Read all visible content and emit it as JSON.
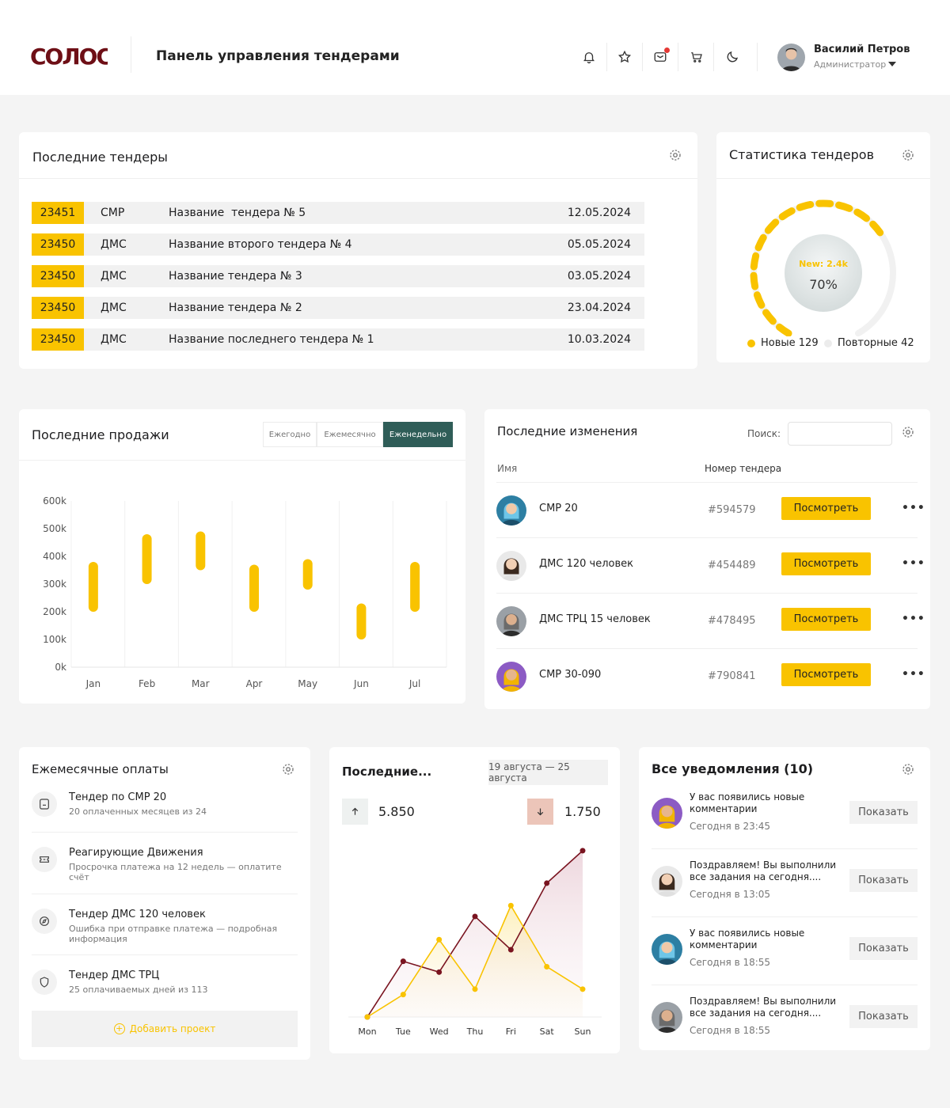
{
  "header": {
    "logo_text": "COЛOC",
    "title": "Панель управления тендерами",
    "user": {
      "name": "Василий Петров",
      "role": "Администратор"
    }
  },
  "tenders": {
    "title": "Последние тендеры",
    "rows": [
      {
        "id": "23451",
        "type": "СМР",
        "name": "Название  тендера № 5",
        "date": "12.05.2024"
      },
      {
        "id": "23450",
        "type": "ДМС",
        "name": "Название второго тендера № 4",
        "date": "05.05.2024"
      },
      {
        "id": "23450",
        "type": "ДМС",
        "name": "Название тендера № 3",
        "date": "03.05.2024"
      },
      {
        "id": "23450",
        "type": "ДМС",
        "name": "Название тендера № 2",
        "date": "23.04.2024"
      },
      {
        "id": "23450",
        "type": "ДМС",
        "name": "Название последнего тендера № 1",
        "date": "10.03.2024"
      }
    ]
  },
  "stats": {
    "title": "Статистика тендеров",
    "center_label": "New: 2.4k",
    "center_percent": "70%",
    "progress": 0.7,
    "legend": [
      {
        "label": "Новые 129",
        "color": "#f9c300"
      },
      {
        "label": "Повторные 42",
        "color": "#ececec"
      }
    ]
  },
  "sales": {
    "title": "Последние продажи",
    "tabs": [
      "Ежегодно",
      "Ежемесячно",
      "Еженедельно"
    ],
    "active_tab": 2,
    "chart_data": {
      "type": "bar",
      "categories": [
        "Jan",
        "Feb",
        "Mar",
        "Apr",
        "May",
        "Jun",
        "Jul"
      ],
      "ranges": [
        [
          200000,
          380000
        ],
        [
          300000,
          480000
        ],
        [
          350000,
          490000
        ],
        [
          200000,
          370000
        ],
        [
          280000,
          390000
        ],
        [
          100000,
          230000
        ],
        [
          200000,
          380000
        ]
      ],
      "ylim": [
        0,
        600000
      ],
      "yticks": [
        "0k",
        "100k",
        "200k",
        "300k",
        "400k",
        "500k",
        "600k"
      ],
      "color": "#f9c300"
    }
  },
  "changes": {
    "title": "Последние изменения",
    "search_label": "Поиск:",
    "columns": [
      "Имя",
      "Номер тендера"
    ],
    "button_label": "Посмотреть",
    "rows": [
      {
        "name": "СМР 20",
        "number": "#594579"
      },
      {
        "name": "ДМС 120 человек",
        "number": "#454489"
      },
      {
        "name": "ДМС ТРЦ 15 человек",
        "number": "#478495"
      },
      {
        "name": "СМР 30-090",
        "number": "#790841"
      }
    ]
  },
  "payments": {
    "title": "Ежемесячные оплаты",
    "items": [
      {
        "title": "Тендер по СМР 20",
        "sub": "20 оплаченных месяцев из 24",
        "icon": "receipt-icon"
      },
      {
        "title": "Реагирующие Движения",
        "sub": "Просрочка платежа на 12 недель — оплатите счёт",
        "icon": "ticket-icon"
      },
      {
        "title": "Тендер ДМС 120 человек",
        "sub": "Ошибка при отправке платежа — подробная информация",
        "icon": "compass-icon"
      },
      {
        "title": "Тендер ДМС ТРЦ",
        "sub": "25 оплачиваемых дней из 113",
        "icon": "shield-icon"
      }
    ],
    "add_label": "Добавить проект"
  },
  "latest": {
    "title": "Последние...",
    "range": "19 августа — 25 августа",
    "up_value": "5.850",
    "down_value": "1.750",
    "chart_data": {
      "type": "line",
      "x": [
        "Mon",
        "Tue",
        "Wed",
        "Thu",
        "Fri",
        "Sat",
        "Sun"
      ],
      "series": [
        {
          "color": "#7a1420",
          "values": [
            0,
            72,
            58,
            130,
            87,
            173,
            215
          ]
        },
        {
          "color": "#f9c300",
          "values": [
            0,
            29,
            100,
            36,
            144,
            65,
            36
          ]
        }
      ],
      "ylim": [
        0,
        220
      ]
    }
  },
  "notifications": {
    "title": "Все уведомления (10)",
    "button_label": "Показать",
    "items": [
      {
        "text": "У вас появились новые комментарии",
        "time": "Сегодня в 23:45"
      },
      {
        "text": "Поздравляем! Вы выполнили все задания на сегодня....",
        "time": "Сегодня в 13:05"
      },
      {
        "text": "У вас появились новые комментарии",
        "time": "Сегодня в 18:55"
      },
      {
        "text": "Поздравляем! Вы выполнили все задания на сегодня....",
        "time": "Сегодня в 18:55"
      }
    ]
  }
}
